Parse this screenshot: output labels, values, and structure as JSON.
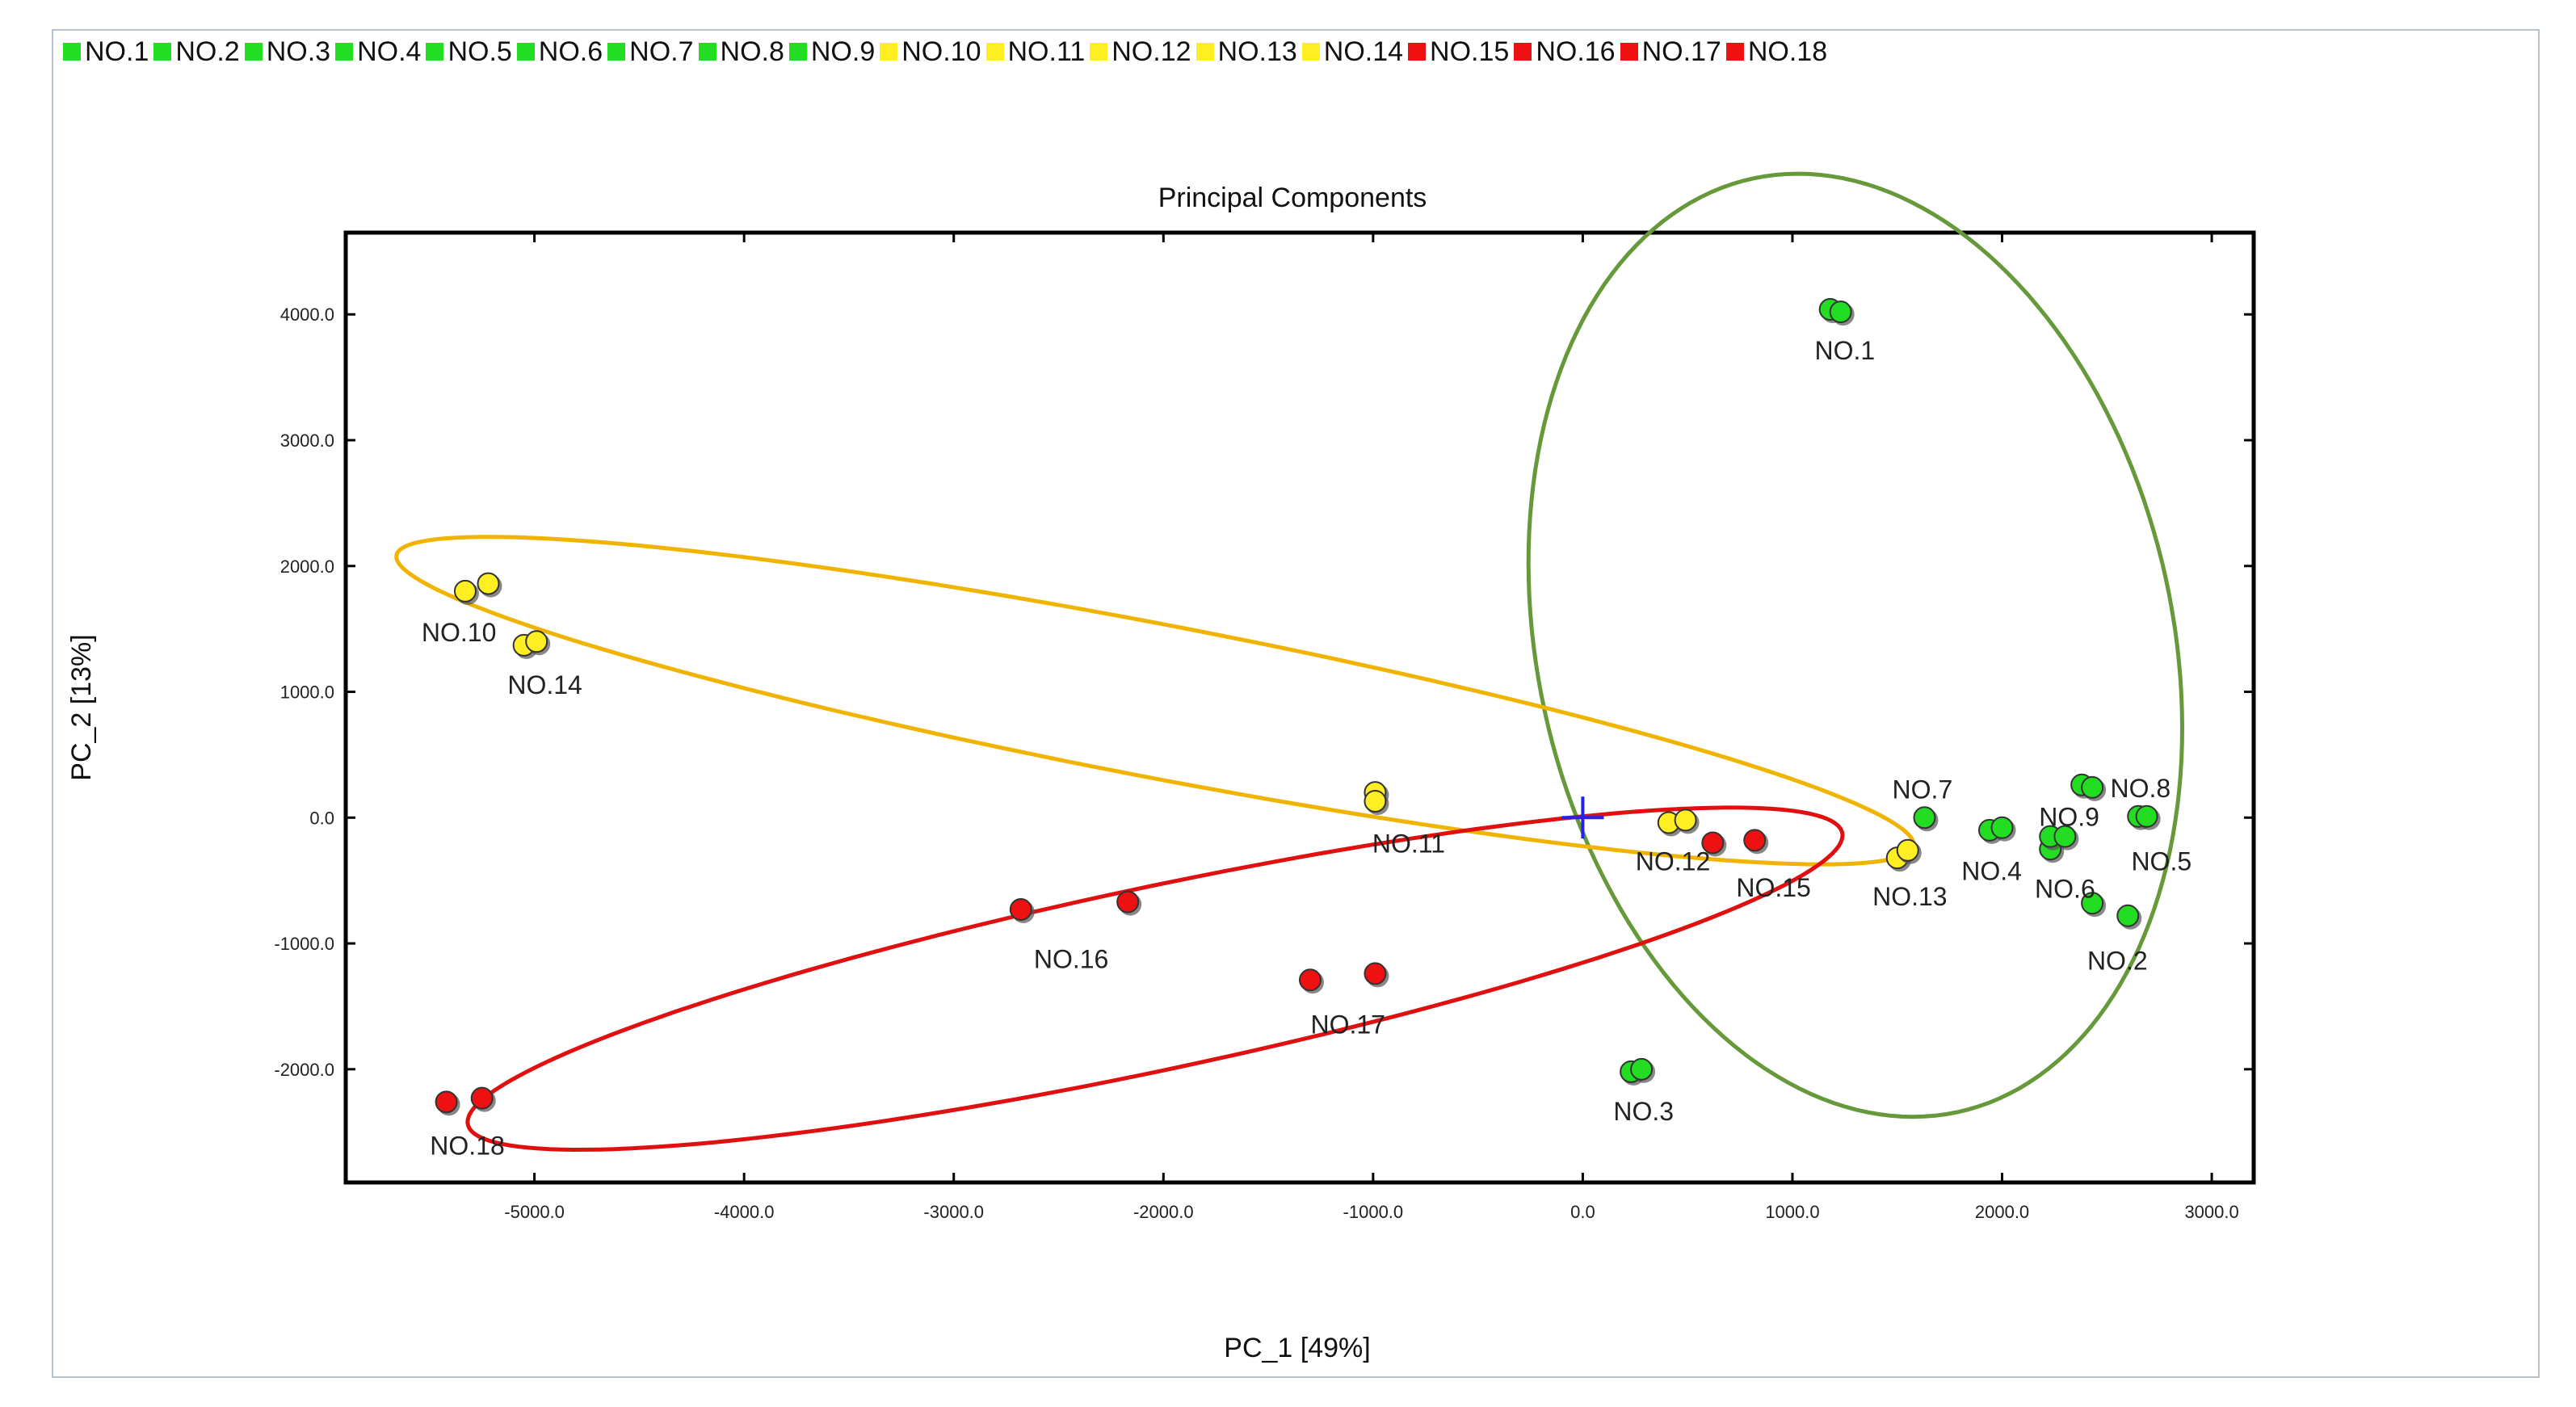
{
  "chart_data": {
    "type": "scatter",
    "title": "Principal Components",
    "xlabel": "PC_1 [49%]",
    "ylabel": "PC_2 [13%]",
    "xlim": [
      -5900,
      3200
    ],
    "ylim": [
      -2900,
      4650
    ],
    "xticks": [
      -5000,
      -4000,
      -3000,
      -2000,
      -1000,
      0,
      1000,
      2000,
      3000
    ],
    "xtick_labels": [
      "-5000.0",
      "-4000.0",
      "-3000.0",
      "-2000.0",
      "-1000.0",
      "0.0",
      "1000.0",
      "2000.0",
      "3000.0"
    ],
    "yticks": [
      -2000,
      -1000,
      0,
      1000,
      2000,
      3000,
      4000
    ],
    "ytick_labels": [
      "-2000.0",
      "-1000.0",
      "0.0",
      "1000.0",
      "2000.0",
      "3000.0",
      "4000.0"
    ],
    "colors": {
      "green": "#22dd22",
      "yellow": "#ffee22",
      "red": "#ee1111",
      "center": "#2222ee",
      "ellipse_green": "#66993a",
      "ellipse_yellow": "#f0b400",
      "ellipse_red": "#e01010"
    },
    "center": [
      0,
      0
    ],
    "legend": [
      {
        "label": "NO.1",
        "group": "green"
      },
      {
        "label": "NO.2",
        "group": "green"
      },
      {
        "label": "NO.3",
        "group": "green"
      },
      {
        "label": "NO.4",
        "group": "green"
      },
      {
        "label": "NO.5",
        "group": "green"
      },
      {
        "label": "NO.6",
        "group": "green"
      },
      {
        "label": "NO.7",
        "group": "green"
      },
      {
        "label": "NO.8",
        "group": "green"
      },
      {
        "label": "NO.9",
        "group": "green"
      },
      {
        "label": "NO.10",
        "group": "yellow"
      },
      {
        "label": "NO.11",
        "group": "yellow"
      },
      {
        "label": "NO.12",
        "group": "yellow"
      },
      {
        "label": "NO.13",
        "group": "yellow"
      },
      {
        "label": "NO.14",
        "group": "yellow"
      },
      {
        "label": "NO.15",
        "group": "red"
      },
      {
        "label": "NO.16",
        "group": "red"
      },
      {
        "label": "NO.17",
        "group": "red"
      },
      {
        "label": "NO.18",
        "group": "red"
      }
    ],
    "series": [
      {
        "name": "NO.1",
        "group": "green",
        "points": [
          [
            1180,
            4040
          ],
          [
            1230,
            4020
          ]
        ],
        "label_at": [
          1250,
          3720
        ]
      },
      {
        "name": "NO.2",
        "group": "green",
        "points": [
          [
            2430,
            -680
          ],
          [
            2600,
            -780
          ]
        ],
        "label_at": [
          2550,
          -1130
        ]
      },
      {
        "name": "NO.3",
        "group": "green",
        "points": [
          [
            230,
            -2020
          ],
          [
            280,
            -2000
          ]
        ],
        "label_at": [
          290,
          -2330
        ]
      },
      {
        "name": "NO.4",
        "group": "green",
        "points": [
          [
            1940,
            -100
          ],
          [
            2000,
            -80
          ]
        ],
        "label_at": [
          1950,
          -420
        ]
      },
      {
        "name": "NO.5",
        "group": "green",
        "points": [
          [
            2650,
            10
          ],
          [
            2690,
            10
          ]
        ],
        "label_at": [
          2760,
          -340
        ]
      },
      {
        "name": "NO.6",
        "group": "green",
        "points": [
          [
            2230,
            -250
          ],
          [
            2230,
            -150
          ],
          [
            2300,
            -150
          ]
        ],
        "label_at": [
          2300,
          -560
        ]
      },
      {
        "name": "NO.7",
        "group": "green",
        "points": [
          [
            1630,
            0
          ]
        ],
        "label_at": [
          1620,
          230
        ]
      },
      {
        "name": "NO.8",
        "group": "green",
        "points": [
          [
            2380,
            260
          ],
          [
            2430,
            240
          ]
        ],
        "label_at": [
          2660,
          240
        ]
      },
      {
        "name": "NO.9",
        "group": "green",
        "points": [],
        "label_at": [
          2320,
          10
        ]
      },
      {
        "name": "NO.10",
        "group": "yellow",
        "points": [
          [
            -5330,
            1800
          ],
          [
            -5220,
            1860
          ]
        ],
        "label_at": [
          -5360,
          1480
        ]
      },
      {
        "name": "NO.11",
        "group": "yellow",
        "points": [
          [
            -990,
            200
          ],
          [
            -990,
            130
          ]
        ],
        "label_at": [
          -830,
          -200
        ]
      },
      {
        "name": "NO.12",
        "group": "yellow",
        "points": [
          [
            410,
            -40
          ],
          [
            490,
            -20
          ]
        ],
        "label_at": [
          430,
          -340
        ]
      },
      {
        "name": "NO.13",
        "group": "yellow",
        "points": [
          [
            1500,
            -320
          ],
          [
            1550,
            -260
          ]
        ],
        "label_at": [
          1560,
          -620
        ]
      },
      {
        "name": "NO.14",
        "group": "yellow",
        "points": [
          [
            -5050,
            1370
          ],
          [
            -4990,
            1400
          ]
        ],
        "label_at": [
          -4950,
          1060
        ]
      },
      {
        "name": "NO.15",
        "group": "red",
        "points": [
          [
            620,
            -200
          ],
          [
            820,
            -180
          ]
        ],
        "label_at": [
          910,
          -550
        ]
      },
      {
        "name": "NO.16",
        "group": "red",
        "points": [
          [
            -2680,
            -730
          ],
          [
            -2170,
            -670
          ]
        ],
        "label_at": [
          -2440,
          -1120
        ]
      },
      {
        "name": "NO.17",
        "group": "red",
        "points": [
          [
            -1300,
            -1290
          ],
          [
            -990,
            -1240
          ]
        ],
        "label_at": [
          -1120,
          -1640
        ]
      },
      {
        "name": "NO.18",
        "group": "red",
        "points": [
          [
            -5420,
            -2260
          ],
          [
            -5250,
            -2230
          ]
        ],
        "label_at": [
          -5320,
          -2600
        ]
      }
    ],
    "ellipses": [
      {
        "group": "green",
        "cx": 1300,
        "cy": 1370,
        "rx": 3760,
        "ry": 1530,
        "angle_deg": 95
      },
      {
        "group": "yellow",
        "cx": -2040,
        "cy": 930,
        "rx": 3800,
        "ry": 590,
        "angle_deg": -18
      },
      {
        "group": "red",
        "cx": -2040,
        "cy": -1280,
        "rx": 3480,
        "ry": 700,
        "angle_deg": 20
      }
    ]
  }
}
